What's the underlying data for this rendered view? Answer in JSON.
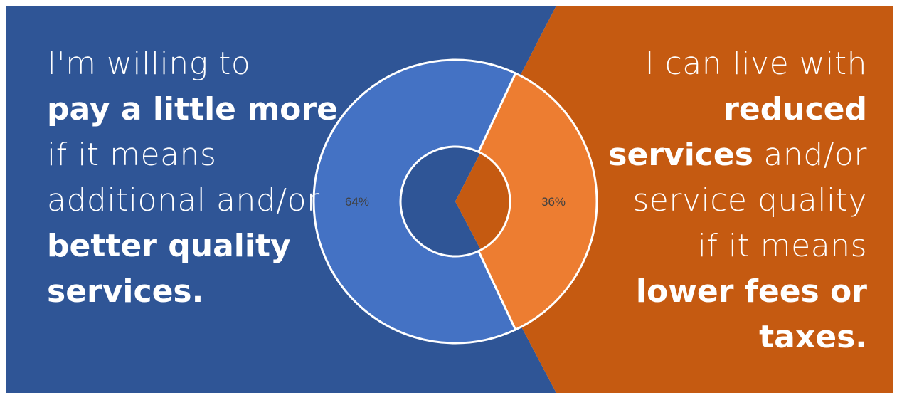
{
  "colors": {
    "left_background": "#2f5596",
    "right_background": "#c55a11",
    "series_blue": "#4472c4",
    "series_orange": "#ed7d31",
    "divider": "#ffffff",
    "label_text": "#404040"
  },
  "left_statement": {
    "lines": [
      {
        "text": "I'm willing to",
        "style": "light"
      },
      {
        "text": "pay a little more",
        "style": "bold"
      },
      {
        "text": "if it means",
        "style": "light"
      },
      {
        "text": "additional and/or",
        "style": "light"
      },
      {
        "text": "better quality",
        "style": "bold"
      },
      {
        "text": "services.",
        "style": "bold"
      }
    ]
  },
  "right_statement": {
    "lines": [
      {
        "text": "I can live with",
        "style": "light"
      },
      {
        "text": "reduced",
        "style": "bold"
      },
      {
        "text": "services",
        "style": "bold",
        "suffix": " and/or"
      },
      {
        "text": "service quality",
        "style": "light"
      },
      {
        "text": "if it means",
        "style": "light"
      },
      {
        "text": "lower fees or",
        "style": "bold"
      },
      {
        "text": "taxes.",
        "style": "bold"
      }
    ]
  },
  "chart_data": {
    "type": "pie",
    "subtype": "doughnut",
    "title": "",
    "categories": [
      "",
      ""
    ],
    "values": [
      64,
      36
    ],
    "labels": [
      "64%",
      "36%"
    ],
    "colors": [
      "#4472c4",
      "#ed7d31"
    ],
    "legend": "none"
  }
}
